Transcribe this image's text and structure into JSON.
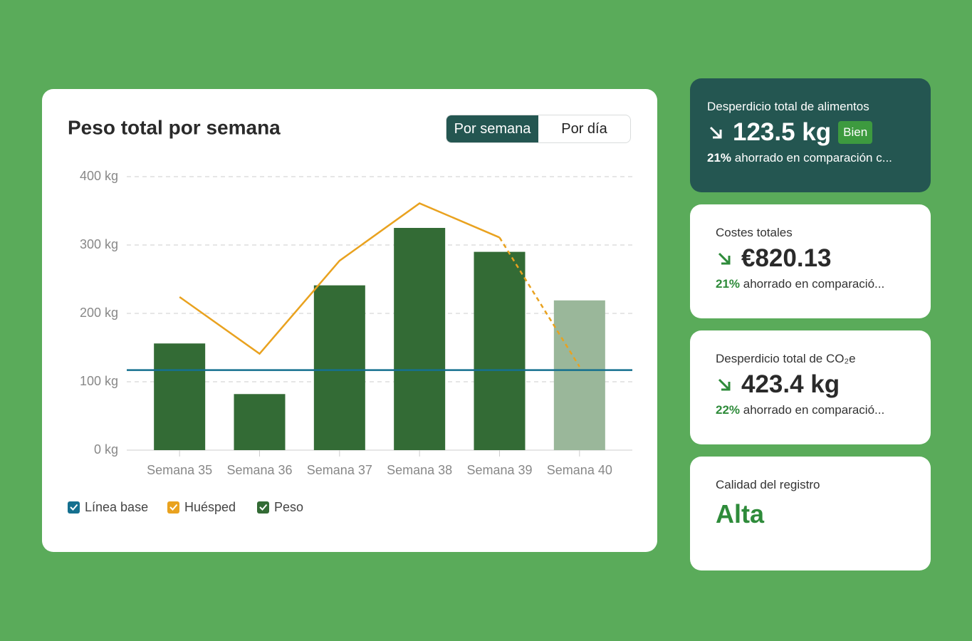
{
  "chart_data": {
    "type": "bar",
    "title": "Peso total por semana",
    "categories": [
      "Semana 35",
      "Semana 36",
      "Semana 37",
      "Semana 38",
      "Semana 39",
      "Semana 40"
    ],
    "ylim": [
      0,
      400
    ],
    "yticks": [
      {
        "value": 0,
        "label": "0 kg"
      },
      {
        "value": 100,
        "label": "100 kg"
      },
      {
        "value": 200,
        "label": "200 kg"
      },
      {
        "value": 300,
        "label": "300 kg"
      },
      {
        "value": 400,
        "label": "400 kg"
      }
    ],
    "grid": true,
    "series": [
      {
        "name": "Línea base",
        "type": "hline",
        "color": "#15708f",
        "value": 117
      },
      {
        "name": "Huésped",
        "type": "line",
        "color": "#e9a21f",
        "values": [
          224,
          141,
          277,
          361,
          311,
          122
        ],
        "dashed_from": 4
      },
      {
        "name": "Peso",
        "type": "bar",
        "color": "#336b35",
        "values": [
          156,
          82,
          241,
          325,
          290,
          219
        ],
        "colors": [
          "#336b35",
          "#336b35",
          "#336b35",
          "#336b35",
          "#336b35",
          "#9ab79a"
        ]
      }
    ]
  },
  "toggle": {
    "options": [
      "Por semana",
      "Por día"
    ],
    "active": 0
  },
  "cards": [
    {
      "label": "Desperdicio total de alimentos",
      "value": "123.5 kg",
      "badge": "Bien",
      "percent": "21%",
      "note": "ahorrado en comparación c..."
    },
    {
      "label": "Costes totales",
      "value": "€820.13",
      "percent": "21%",
      "note": "ahorrado en comparació..."
    },
    {
      "label": "Desperdicio total de CO₂e",
      "value": "423.4 kg",
      "percent": "22%",
      "note": "ahorrado en comparació..."
    },
    {
      "label": "Calidad del registro",
      "value": "Alta"
    }
  ]
}
